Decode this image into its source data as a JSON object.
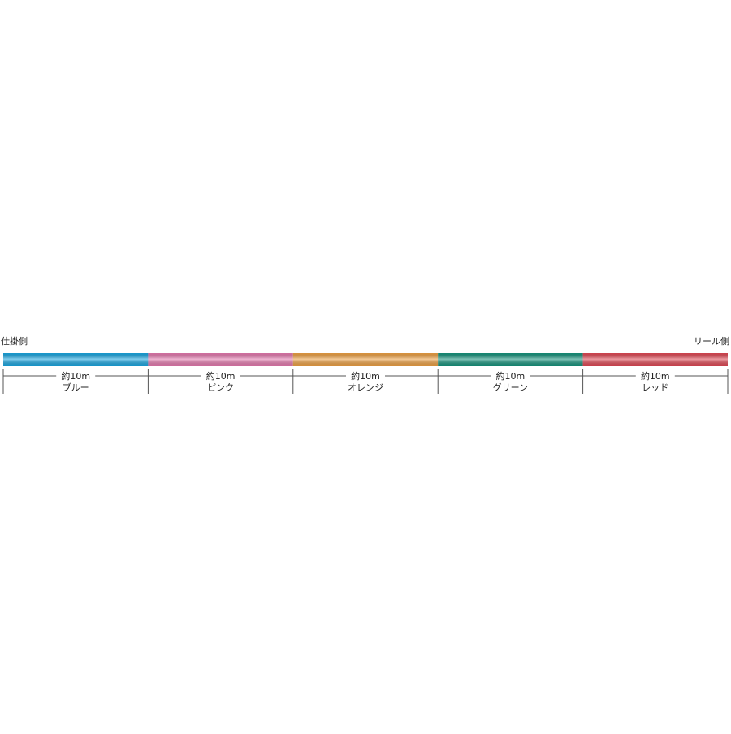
{
  "labels": {
    "left": "仕掛側",
    "right": "リール側"
  },
  "segments": [
    {
      "length": "約10m",
      "name": "ブルー",
      "color": "#1aa6e0"
    },
    {
      "length": "約10m",
      "name": "ピンク",
      "color": "#e479ae"
    },
    {
      "length": "約10m",
      "name": "オレンジ",
      "color": "#eda043"
    },
    {
      "length": "約10m",
      "name": "グリーン",
      "color": "#16937c"
    },
    {
      "length": "約10m",
      "name": "レッド",
      "color": "#df4854"
    }
  ]
}
